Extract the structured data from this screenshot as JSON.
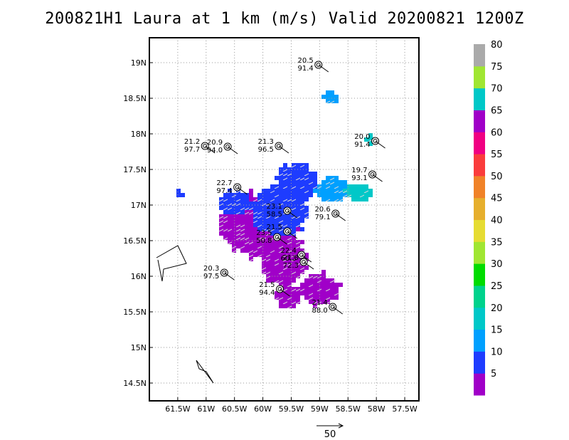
{
  "title": "200821H1 Laura at 1 km (m/s) Valid 20200821 1200Z",
  "scale_arrow_label": "50",
  "chart_data": {
    "type": "scatter",
    "title": "200821H1 Laura at 1 km (m/s) Valid 20200821 1200Z",
    "xlabel": "",
    "ylabel": "",
    "xlim": [
      -62.0,
      -57.25
    ],
    "ylim": [
      14.25,
      19.35
    ],
    "grid": true,
    "x_ticks": [
      {
        "v": -61.5,
        "label": "61.5W"
      },
      {
        "v": -61.0,
        "label": "61W"
      },
      {
        "v": -60.5,
        "label": "60.5W"
      },
      {
        "v": -60.0,
        "label": "60W"
      },
      {
        "v": -59.5,
        "label": "59.5W"
      },
      {
        "v": -59.0,
        "label": "59W"
      },
      {
        "v": -58.5,
        "label": "58.5W"
      },
      {
        "v": -58.0,
        "label": "58W"
      },
      {
        "v": -57.5,
        "label": "57.5W"
      }
    ],
    "y_ticks": [
      {
        "v": 14.5,
        "label": "14.5N"
      },
      {
        "v": 15.0,
        "label": "15N"
      },
      {
        "v": 15.5,
        "label": "15.5N"
      },
      {
        "v": 16.0,
        "label": "16N"
      },
      {
        "v": 16.5,
        "label": "16.5N"
      },
      {
        "v": 17.0,
        "label": "17N"
      },
      {
        "v": 17.5,
        "label": "17.5N"
      },
      {
        "v": 18.0,
        "label": "18N"
      },
      {
        "v": 18.5,
        "label": "18.5N"
      },
      {
        "v": 19.0,
        "label": "19N"
      }
    ],
    "colorbar": {
      "labels": [
        "5",
        "10",
        "15",
        "20",
        "25",
        "30",
        "35",
        "40",
        "45",
        "50",
        "55",
        "60",
        "65",
        "70",
        "75",
        "80"
      ],
      "colors": [
        "#a000c8",
        "#1e3cff",
        "#00a0ff",
        "#00c8c8",
        "#00d28c",
        "#00dc00",
        "#a0e632",
        "#e6dc32",
        "#e6af2d",
        "#f08228",
        "#fa3c3c",
        "#f00082",
        "#a000c8",
        "#00c8c8",
        "#a0e632",
        "#aaaaaa"
      ]
    },
    "stations": [
      {
        "lon": -59.02,
        "lat": 18.97,
        "v1": "20.5",
        "v2": "91.4"
      },
      {
        "lon": -61.02,
        "lat": 17.83,
        "v1": "21.2",
        "v2": "97.7"
      },
      {
        "lon": -60.62,
        "lat": 17.82,
        "v1": "20.9",
        "v2": "94.0"
      },
      {
        "lon": -59.72,
        "lat": 17.83,
        "v1": "21.3",
        "v2": "96.5"
      },
      {
        "lon": -58.02,
        "lat": 17.9,
        "v1": "20.0",
        "v2": "91.4"
      },
      {
        "lon": -58.07,
        "lat": 17.43,
        "v1": "19.7",
        "v2": "93.1"
      },
      {
        "lon": -60.45,
        "lat": 17.25,
        "v1": "22.7",
        "v2": "97.4"
      },
      {
        "lon": -59.57,
        "lat": 16.92,
        "v1": "23.1",
        "v2": "58.5"
      },
      {
        "lon": -58.72,
        "lat": 16.88,
        "v1": "20.6",
        "v2": "79.1"
      },
      {
        "lon": -59.57,
        "lat": 16.63,
        "v1": "21.5",
        "v2": ""
      },
      {
        "lon": -59.75,
        "lat": 16.55,
        "v1": "23.5",
        "v2": "50.8"
      },
      {
        "lon": -59.32,
        "lat": 16.3,
        "v1": "22.4",
        "v2": "60.3"
      },
      {
        "lon": -59.28,
        "lat": 16.2,
        "v1": "21.3",
        "v2": "72.3"
      },
      {
        "lon": -60.68,
        "lat": 16.05,
        "v1": "20.3",
        "v2": "97.5"
      },
      {
        "lon": -59.7,
        "lat": 15.82,
        "v1": "21.5",
        "v2": "94.4"
      },
      {
        "lon": -58.77,
        "lat": 15.57,
        "v1": "21.4",
        "v2": "88.0"
      }
    ]
  }
}
